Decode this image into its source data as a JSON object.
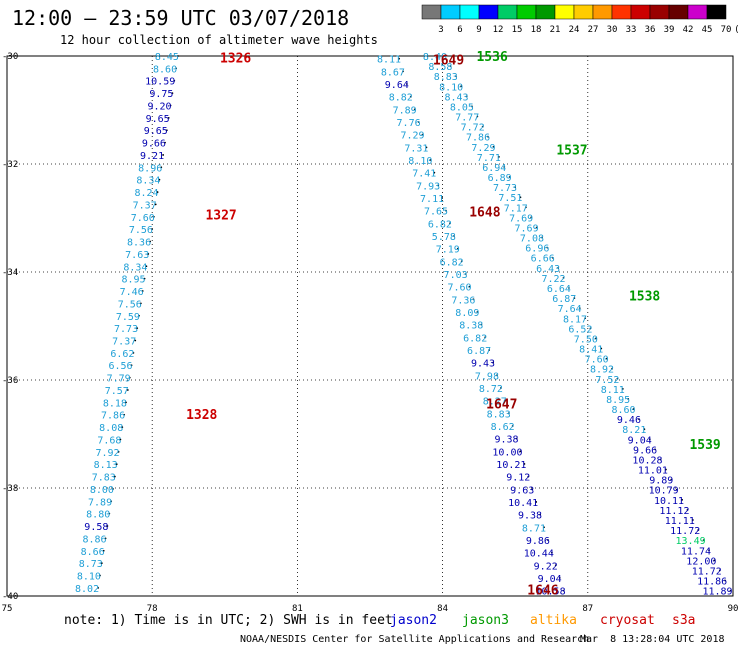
{
  "title": "12:00 — 23:59 UTC 03/07/2018",
  "subtitle": "12 hour collection of altimeter wave heights",
  "colorbar": {
    "labels": [
      "3",
      "6",
      "9",
      "12",
      "15",
      "18",
      "21",
      "24",
      "27",
      "30",
      "33",
      "36",
      "39",
      "42",
      "45",
      "70",
      "(ft)"
    ],
    "colors": [
      "#777777",
      "#00ccff",
      "#00ffff",
      "#0000ff",
      "#00cc66",
      "#00cc00",
      "#009900",
      "#ffff00",
      "#ffcc00",
      "#ff9900",
      "#ff3300",
      "#cc0000",
      "#990000",
      "#660000",
      "#cc00cc",
      "#000000"
    ]
  },
  "note": {
    "text": "note: 1) Time is in UTC; 2) SWH is in feet",
    "sats": [
      {
        "name": "jason2",
        "color": "#0000cc"
      },
      {
        "name": "jason3",
        "color": "#009900"
      },
      {
        "name": "altika",
        "color": "#ff9900"
      },
      {
        "name": "cryosat",
        "color": "#cc0000"
      },
      {
        "name": "s3a",
        "color": "#cc0000"
      }
    ]
  },
  "footer": "NOAA/NESDIS Center for Satellite Applications and Research",
  "footer_ts": "Mar  8 13:28:04 UTC 2018",
  "chart_data": {
    "type": "scatter",
    "xlim": [
      75,
      90
    ],
    "ylim": [
      -40,
      -30
    ],
    "xticks": [
      "75",
      "78",
      "81",
      "84",
      "87",
      "90"
    ],
    "yticks": [
      "-30",
      "-32",
      "-34",
      "-36",
      "-38",
      "-40"
    ],
    "grid": true,
    "time_labels": [
      {
        "text": "1326",
        "lon": 79.4,
        "lat": -30.05,
        "color": "#cc0000"
      },
      {
        "text": "1327",
        "lon": 79.1,
        "lat": -32.95,
        "color": "#cc0000"
      },
      {
        "text": "1328",
        "lon": 78.7,
        "lat": -36.65,
        "color": "#cc0000"
      },
      {
        "text": "1649",
        "lon": 83.8,
        "lat": -30.08,
        "color": "#990000"
      },
      {
        "text": "1648",
        "lon": 84.55,
        "lat": -32.9,
        "color": "#990000"
      },
      {
        "text": "1647",
        "lon": 84.9,
        "lat": -36.45,
        "color": "#990000"
      },
      {
        "text": "1646",
        "lon": 85.75,
        "lat": -39.9,
        "color": "#990000"
      },
      {
        "text": "1536",
        "lon": 84.7,
        "lat": -30.02,
        "color": "#009900"
      },
      {
        "text": "1537",
        "lon": 86.35,
        "lat": -31.75,
        "color": "#009900"
      },
      {
        "text": "1538",
        "lon": 87.85,
        "lat": -34.45,
        "color": "#009900"
      },
      {
        "text": "1539",
        "lon": 89.1,
        "lat": -37.2,
        "color": "#009900"
      }
    ],
    "series": [
      {
        "name": "cryosat",
        "points": [
          [
            78.45,
            -30.0
          ],
          [
            78.6,
            -30.2
          ],
          [
            78.59,
            -30.4
          ],
          [
            78.55,
            -30.6
          ],
          [
            78.51,
            -30.8
          ],
          [
            78.48,
            -31.0
          ],
          [
            78.45,
            -31.2
          ],
          [
            78.41,
            -31.4
          ],
          [
            78.38,
            -31.6
          ],
          [
            78.34,
            -31.8
          ],
          [
            78.3,
            -32.0
          ],
          [
            78.26,
            -32.2
          ],
          [
            78.23,
            -32.4
          ],
          [
            78.19,
            -32.6
          ],
          [
            78.15,
            -32.8
          ],
          [
            78.12,
            -33.0
          ],
          [
            78.08,
            -33.2
          ],
          [
            78.04,
            -33.4
          ],
          [
            78.0,
            -33.6
          ],
          [
            77.96,
            -33.8
          ],
          [
            77.92,
            -34.0
          ],
          [
            77.89,
            -34.2
          ],
          [
            77.85,
            -34.4
          ],
          [
            77.81,
            -34.6
          ],
          [
            77.77,
            -34.8
          ],
          [
            77.73,
            -35.0
          ],
          [
            77.69,
            -35.2
          ],
          [
            77.66,
            -35.4
          ],
          [
            77.62,
            -35.6
          ],
          [
            77.58,
            -35.8
          ],
          [
            77.54,
            -36.0
          ],
          [
            77.5,
            -36.2
          ],
          [
            77.46,
            -36.4
          ],
          [
            77.42,
            -36.6
          ],
          [
            77.38,
            -36.8
          ],
          [
            77.34,
            -37.0
          ],
          [
            77.3,
            -37.2
          ],
          [
            77.26,
            -37.4
          ],
          [
            77.23,
            -37.6
          ],
          [
            77.19,
            -37.8
          ],
          [
            77.14,
            -38.0
          ],
          [
            77.1,
            -38.2
          ],
          [
            77.06,
            -38.4
          ],
          [
            77.02,
            -38.6
          ],
          [
            76.98,
            -38.8
          ],
          [
            76.94,
            -39.0
          ],
          [
            76.9,
            -39.2
          ],
          [
            76.86,
            -39.4
          ],
          [
            76.82,
            -39.6
          ],
          [
            76.78,
            -39.8
          ]
        ],
        "values": [
          "8.45",
          "8.60",
          "10.59",
          "9.75",
          "9.20",
          "9.65",
          "9.65",
          "9.66",
          "9.21",
          "8.96",
          "8.34",
          "8.24",
          "7.37",
          "7.60",
          "7.56",
          "8.36",
          "7.63",
          "8.34",
          "8.95",
          "7.46",
          "7.56",
          "7.59",
          "7.73",
          "7.37",
          "6.62",
          "6.56",
          "7.79",
          "7.57",
          "8.18",
          "7.86",
          "8.08",
          "7.68",
          "7.92",
          "8.13",
          "7.83",
          "8.00",
          "7.89",
          "8.80",
          "9.58",
          "8.86",
          "8.66",
          "8.73",
          "8.10",
          "8.02"
        ],
        "colors": [
          "c",
          "c",
          "b",
          "b",
          "b",
          "b",
          "b",
          "b",
          "b",
          "c",
          "c",
          "c",
          "c",
          "c",
          "c",
          "c",
          "c",
          "c",
          "c",
          "c",
          "c",
          "c",
          "c",
          "c",
          "c",
          "c",
          "c",
          "c",
          "c",
          "c",
          "c",
          "c",
          "c",
          "c",
          "c",
          "c",
          "c",
          "c",
          "b",
          "c",
          "c",
          "c",
          "c",
          "c"
        ]
      },
      {
        "name": "s3a-left",
        "values": [
          "8.11",
          "8.67",
          "9.64",
          "8.82",
          "7.89",
          "7.76",
          "7.29",
          "7.31",
          "8.10",
          "7.41",
          "7.93",
          "7.11",
          "7.65",
          "6.82",
          "5.78",
          "7.19",
          "6.82",
          "7.03",
          "7.60",
          "7.36",
          "8.09",
          "8.38",
          "6.82",
          "6.87",
          "9.43",
          "7.98",
          "8.72",
          "8.27",
          "8.83",
          "8.62",
          "9.38",
          "10.00",
          "10.21",
          "9.12",
          "9.63",
          "10.41",
          "9.38",
          "8.71",
          "9.86",
          "10.44",
          "9.22",
          "9.04",
          "10.58"
        ],
        "colors": [
          "c",
          "c",
          "b",
          "c",
          "c",
          "c",
          "c",
          "c",
          "c",
          "c",
          "c",
          "c",
          "c",
          "c",
          "c",
          "c",
          "c",
          "c",
          "c",
          "c",
          "c",
          "c",
          "c",
          "c",
          "b",
          "c",
          "c",
          "c",
          "c",
          "c",
          "b",
          "b",
          "b",
          "b",
          "b",
          "b",
          "b",
          "c",
          "b",
          "b",
          "b",
          "b",
          "b"
        ]
      },
      {
        "name": "jason3",
        "values": [
          "8.40",
          "8.58",
          "8.83",
          "8.10",
          "8.43",
          "8.05",
          "7.77",
          "7.72",
          "7.86",
          "7.29",
          "7.71",
          "6.94",
          "6.89",
          "7.73",
          "7.51",
          "7.17",
          "7.69",
          "7.69",
          "7.08",
          "6.96",
          "6.66",
          "6.43",
          "7.22",
          "6.64",
          "6.87",
          "7.64",
          "8.17",
          "6.52",
          "7.50",
          "8.41",
          "7.60",
          "8.92",
          "7.52",
          "8.11",
          "8.95",
          "8.60",
          "9.46",
          "8.21",
          "9.04",
          "9.66",
          "10.28",
          "11.01",
          "9.89",
          "10.79",
          "10.11",
          "11.12",
          "11.11",
          "11.72",
          "13.49",
          "11.74",
          "12.00",
          "11.72",
          "11.86",
          "11.89"
        ],
        "colors": [
          "c",
          "c",
          "c",
          "c",
          "c",
          "c",
          "c",
          "c",
          "c",
          "c",
          "c",
          "c",
          "c",
          "c",
          "c",
          "c",
          "c",
          "c",
          "c",
          "c",
          "c",
          "c",
          "c",
          "c",
          "c",
          "c",
          "c",
          "c",
          "c",
          "c",
          "c",
          "c",
          "c",
          "c",
          "c",
          "c",
          "b",
          "c",
          "b",
          "b",
          "b",
          "b",
          "b",
          "b",
          "b",
          "b",
          "b",
          "b",
          "g",
          "b",
          "b",
          "b",
          "b",
          "b"
        ]
      }
    ]
  }
}
